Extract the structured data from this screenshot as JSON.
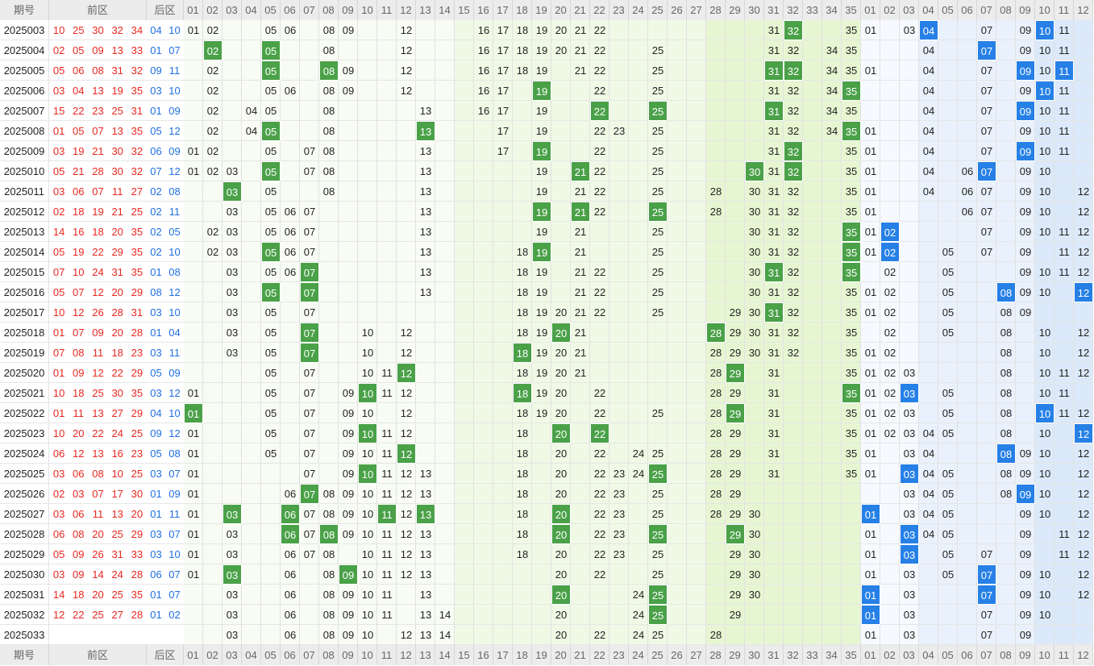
{
  "header": {
    "period_label": "期号",
    "front_label": "前区",
    "back_label": "后区",
    "front_numbers": [
      "01",
      "02",
      "03",
      "04",
      "05",
      "06",
      "07",
      "08",
      "09",
      "10",
      "11",
      "12",
      "13",
      "14",
      "15",
      "16",
      "17",
      "18",
      "19",
      "20",
      "21",
      "22",
      "23",
      "24",
      "25",
      "26",
      "27",
      "28",
      "29",
      "30",
      "31",
      "32",
      "33",
      "34",
      "35"
    ],
    "back_numbers": [
      "01",
      "02",
      "03",
      "04",
      "05",
      "06",
      "07",
      "08",
      "09",
      "10",
      "11",
      "12"
    ]
  },
  "colors": {
    "front_ball_text": "#e8271f",
    "back_ball_text": "#1f6fe0",
    "front_hit_bg": "#4aa148",
    "back_hit_bg": "#2680e6",
    "header_bg": "#ececec",
    "front_zone_tint": [
      "#f8fcf4",
      "#f0f9e5",
      "#e6f6d2"
    ],
    "back_zone_tint": [
      "#f6f9fe",
      "#e9f1fc",
      "#dbe9fa"
    ]
  },
  "rows": [
    {
      "period": "2025003",
      "front": [
        "10",
        "25",
        "30",
        "32",
        "34"
      ],
      "back": [
        "04",
        "10"
      ],
      "front_trend": [
        "01",
        "02",
        "05",
        "06",
        "08",
        "09",
        "12",
        "16",
        "17",
        "18",
        "19",
        "20",
        "21",
        "22",
        "31",
        "32",
        "35"
      ],
      "back_trend": [
        "01",
        "03",
        "04",
        "07",
        "09",
        "10",
        "11"
      ]
    },
    {
      "period": "2025004",
      "front": [
        "02",
        "05",
        "09",
        "13",
        "33"
      ],
      "back": [
        "01",
        "07"
      ],
      "front_trend": [
        "02",
        "05",
        "08",
        "12",
        "16",
        "17",
        "18",
        "19",
        "20",
        "21",
        "22",
        "25",
        "31",
        "32",
        "34",
        "35"
      ],
      "back_trend": [
        "04",
        "07",
        "09",
        "10",
        "11"
      ]
    },
    {
      "period": "2025005",
      "front": [
        "05",
        "06",
        "08",
        "31",
        "32"
      ],
      "back": [
        "09",
        "11"
      ],
      "front_trend": [
        "02",
        "05",
        "08",
        "09",
        "12",
        "16",
        "17",
        "18",
        "19",
        "21",
        "22",
        "25",
        "31",
        "32",
        "34",
        "35"
      ],
      "back_trend": [
        "01",
        "04",
        "07",
        "09",
        "10",
        "11"
      ]
    },
    {
      "period": "2025006",
      "front": [
        "03",
        "04",
        "13",
        "19",
        "35"
      ],
      "back": [
        "03",
        "10"
      ],
      "front_trend": [
        "02",
        "05",
        "06",
        "08",
        "09",
        "12",
        "16",
        "17",
        "19",
        "22",
        "25",
        "31",
        "32",
        "34",
        "35"
      ],
      "back_trend": [
        "04",
        "07",
        "09",
        "10",
        "11"
      ]
    },
    {
      "period": "2025007",
      "front": [
        "15",
        "22",
        "23",
        "25",
        "31"
      ],
      "back": [
        "01",
        "09"
      ],
      "front_trend": [
        "02",
        "04",
        "05",
        "08",
        "13",
        "16",
        "17",
        "19",
        "22",
        "25",
        "31",
        "32",
        "34",
        "35"
      ],
      "back_trend": [
        "04",
        "07",
        "09",
        "10",
        "11"
      ]
    },
    {
      "period": "2025008",
      "front": [
        "01",
        "05",
        "07",
        "13",
        "35"
      ],
      "back": [
        "05",
        "12"
      ],
      "front_trend": [
        "02",
        "04",
        "05",
        "08",
        "13",
        "17",
        "19",
        "22",
        "23",
        "25",
        "31",
        "32",
        "34",
        "35"
      ],
      "back_trend": [
        "01",
        "04",
        "07",
        "09",
        "10",
        "11"
      ]
    },
    {
      "period": "2025009",
      "front": [
        "03",
        "19",
        "21",
        "30",
        "32"
      ],
      "back": [
        "06",
        "09"
      ],
      "front_trend": [
        "01",
        "02",
        "05",
        "07",
        "08",
        "13",
        "17",
        "19",
        "22",
        "25",
        "31",
        "32",
        "35"
      ],
      "back_trend": [
        "01",
        "04",
        "07",
        "09",
        "10",
        "11"
      ]
    },
    {
      "period": "2025010",
      "front": [
        "05",
        "21",
        "28",
        "30",
        "32"
      ],
      "back": [
        "07",
        "12"
      ],
      "front_trend": [
        "01",
        "02",
        "03",
        "05",
        "07",
        "08",
        "13",
        "19",
        "21",
        "22",
        "25",
        "30",
        "31",
        "32",
        "35"
      ],
      "back_trend": [
        "01",
        "04",
        "06",
        "07",
        "09",
        "10"
      ]
    },
    {
      "period": "2025011",
      "front": [
        "03",
        "06",
        "07",
        "11",
        "27"
      ],
      "back": [
        "02",
        "08"
      ],
      "front_trend": [
        "03",
        "05",
        "08",
        "13",
        "19",
        "21",
        "22",
        "25",
        "28",
        "30",
        "31",
        "32",
        "35"
      ],
      "back_trend": [
        "01",
        "04",
        "06",
        "07",
        "09",
        "10",
        "12"
      ]
    },
    {
      "period": "2025012",
      "front": [
        "02",
        "18",
        "19",
        "21",
        "25"
      ],
      "back": [
        "02",
        "11"
      ],
      "front_trend": [
        "03",
        "05",
        "06",
        "07",
        "13",
        "19",
        "21",
        "22",
        "25",
        "28",
        "30",
        "31",
        "32",
        "35"
      ],
      "back_trend": [
        "01",
        "06",
        "07",
        "09",
        "10",
        "12"
      ]
    },
    {
      "period": "2025013",
      "front": [
        "14",
        "16",
        "18",
        "20",
        "35"
      ],
      "back": [
        "02",
        "05"
      ],
      "front_trend": [
        "02",
        "03",
        "05",
        "06",
        "07",
        "13",
        "19",
        "21",
        "25",
        "30",
        "31",
        "32",
        "35"
      ],
      "back_trend": [
        "01",
        "02",
        "07",
        "09",
        "10",
        "11",
        "12"
      ]
    },
    {
      "period": "2025014",
      "front": [
        "05",
        "19",
        "22",
        "29",
        "35"
      ],
      "back": [
        "02",
        "10"
      ],
      "front_trend": [
        "02",
        "03",
        "05",
        "06",
        "07",
        "13",
        "18",
        "19",
        "21",
        "25",
        "30",
        "31",
        "32",
        "35"
      ],
      "back_trend": [
        "01",
        "02",
        "05",
        "07",
        "09",
        "11",
        "12"
      ]
    },
    {
      "period": "2025015",
      "front": [
        "07",
        "10",
        "24",
        "31",
        "35"
      ],
      "back": [
        "01",
        "08"
      ],
      "front_trend": [
        "03",
        "05",
        "06",
        "07",
        "13",
        "18",
        "19",
        "21",
        "22",
        "25",
        "30",
        "31",
        "32",
        "35"
      ],
      "back_trend": [
        "02",
        "05",
        "09",
        "10",
        "11",
        "12"
      ]
    },
    {
      "period": "2025016",
      "front": [
        "05",
        "07",
        "12",
        "20",
        "29"
      ],
      "back": [
        "08",
        "12"
      ],
      "front_trend": [
        "03",
        "05",
        "07",
        "13",
        "18",
        "19",
        "21",
        "22",
        "25",
        "30",
        "31",
        "32",
        "35"
      ],
      "back_trend": [
        "01",
        "02",
        "05",
        "08",
        "09",
        "10",
        "12"
      ]
    },
    {
      "period": "2025017",
      "front": [
        "10",
        "12",
        "26",
        "28",
        "31"
      ],
      "back": [
        "03",
        "10"
      ],
      "front_trend": [
        "03",
        "05",
        "07",
        "18",
        "19",
        "20",
        "21",
        "22",
        "25",
        "29",
        "30",
        "31",
        "32",
        "35"
      ],
      "back_trend": [
        "01",
        "02",
        "05",
        "08",
        "09"
      ]
    },
    {
      "period": "2025018",
      "front": [
        "01",
        "07",
        "09",
        "20",
        "28"
      ],
      "back": [
        "01",
        "04"
      ],
      "front_trend": [
        "03",
        "05",
        "07",
        "10",
        "12",
        "18",
        "19",
        "20",
        "21",
        "28",
        "29",
        "30",
        "31",
        "32",
        "35"
      ],
      "back_trend": [
        "02",
        "05",
        "08",
        "10",
        "12"
      ]
    },
    {
      "period": "2025019",
      "front": [
        "07",
        "08",
        "11",
        "18",
        "23"
      ],
      "back": [
        "03",
        "11"
      ],
      "front_trend": [
        "03",
        "05",
        "07",
        "10",
        "12",
        "18",
        "19",
        "20",
        "21",
        "28",
        "29",
        "30",
        "31",
        "32",
        "35"
      ],
      "back_trend": [
        "01",
        "02",
        "08",
        "10",
        "12"
      ]
    },
    {
      "period": "2025020",
      "front": [
        "01",
        "09",
        "12",
        "22",
        "29"
      ],
      "back": [
        "05",
        "09"
      ],
      "front_trend": [
        "05",
        "07",
        "10",
        "11",
        "12",
        "18",
        "19",
        "20",
        "21",
        "28",
        "29",
        "31",
        "35"
      ],
      "back_trend": [
        "01",
        "02",
        "03",
        "08",
        "10",
        "11",
        "12"
      ]
    },
    {
      "period": "2025021",
      "front": [
        "10",
        "18",
        "25",
        "30",
        "35"
      ],
      "back": [
        "03",
        "12"
      ],
      "front_trend": [
        "01",
        "05",
        "07",
        "09",
        "10",
        "11",
        "12",
        "18",
        "19",
        "20",
        "22",
        "28",
        "29",
        "31",
        "35"
      ],
      "back_trend": [
        "01",
        "02",
        "03",
        "05",
        "08",
        "10",
        "11"
      ]
    },
    {
      "period": "2025022",
      "front": [
        "01",
        "11",
        "13",
        "27",
        "29"
      ],
      "back": [
        "04",
        "10"
      ],
      "front_trend": [
        "01",
        "05",
        "07",
        "09",
        "10",
        "12",
        "18",
        "19",
        "20",
        "22",
        "25",
        "28",
        "29",
        "31",
        "35"
      ],
      "back_trend": [
        "01",
        "02",
        "03",
        "05",
        "08",
        "10",
        "11",
        "12"
      ]
    },
    {
      "period": "2025023",
      "front": [
        "10",
        "20",
        "22",
        "24",
        "25"
      ],
      "back": [
        "09",
        "12"
      ],
      "front_trend": [
        "01",
        "05",
        "07",
        "09",
        "10",
        "11",
        "12",
        "18",
        "20",
        "22",
        "28",
        "29",
        "31",
        "35"
      ],
      "back_trend": [
        "01",
        "02",
        "03",
        "04",
        "05",
        "08",
        "10",
        "12"
      ]
    },
    {
      "period": "2025024",
      "front": [
        "06",
        "12",
        "13",
        "16",
        "23"
      ],
      "back": [
        "05",
        "08"
      ],
      "front_trend": [
        "01",
        "05",
        "07",
        "09",
        "10",
        "11",
        "12",
        "18",
        "20",
        "22",
        "24",
        "25",
        "28",
        "29",
        "31",
        "35"
      ],
      "back_trend": [
        "01",
        "03",
        "04",
        "08",
        "09",
        "10",
        "12"
      ]
    },
    {
      "period": "2025025",
      "front": [
        "03",
        "06",
        "08",
        "10",
        "25"
      ],
      "back": [
        "03",
        "07"
      ],
      "front_trend": [
        "01",
        "07",
        "09",
        "10",
        "11",
        "12",
        "13",
        "18",
        "20",
        "22",
        "23",
        "24",
        "25",
        "28",
        "29",
        "31",
        "35"
      ],
      "back_trend": [
        "01",
        "03",
        "04",
        "05",
        "08",
        "09",
        "10",
        "12"
      ]
    },
    {
      "period": "2025026",
      "front": [
        "02",
        "03",
        "07",
        "17",
        "30"
      ],
      "back": [
        "01",
        "09"
      ],
      "front_trend": [
        "01",
        "06",
        "07",
        "08",
        "09",
        "10",
        "11",
        "12",
        "13",
        "18",
        "20",
        "22",
        "23",
        "25",
        "28",
        "29"
      ],
      "back_trend": [
        "03",
        "04",
        "05",
        "08",
        "09",
        "10",
        "12"
      ]
    },
    {
      "period": "2025027",
      "front": [
        "03",
        "06",
        "11",
        "13",
        "20"
      ],
      "back": [
        "01",
        "11"
      ],
      "front_trend": [
        "01",
        "03",
        "06",
        "07",
        "08",
        "09",
        "10",
        "11",
        "12",
        "13",
        "18",
        "20",
        "22",
        "23",
        "25",
        "28",
        "29",
        "30"
      ],
      "back_trend": [
        "01",
        "03",
        "04",
        "05",
        "09",
        "10",
        "12"
      ]
    },
    {
      "period": "2025028",
      "front": [
        "06",
        "08",
        "20",
        "25",
        "29"
      ],
      "back": [
        "03",
        "07"
      ],
      "front_trend": [
        "01",
        "03",
        "06",
        "07",
        "08",
        "09",
        "10",
        "11",
        "12",
        "13",
        "18",
        "20",
        "22",
        "23",
        "25",
        "29",
        "30"
      ],
      "back_trend": [
        "01",
        "03",
        "04",
        "05",
        "09",
        "11",
        "12"
      ]
    },
    {
      "period": "2025029",
      "front": [
        "05",
        "09",
        "26",
        "31",
        "33"
      ],
      "back": [
        "03",
        "10"
      ],
      "front_trend": [
        "01",
        "03",
        "06",
        "07",
        "08",
        "10",
        "11",
        "12",
        "13",
        "18",
        "20",
        "22",
        "23",
        "25",
        "29",
        "30"
      ],
      "back_trend": [
        "01",
        "03",
        "05",
        "07",
        "09",
        "11",
        "12"
      ]
    },
    {
      "period": "2025030",
      "front": [
        "03",
        "09",
        "14",
        "24",
        "28"
      ],
      "back": [
        "06",
        "07"
      ],
      "front_trend": [
        "01",
        "03",
        "06",
        "08",
        "09",
        "10",
        "11",
        "12",
        "13",
        "20",
        "22",
        "25",
        "29",
        "30"
      ],
      "back_trend": [
        "01",
        "03",
        "05",
        "07",
        "09",
        "10",
        "12"
      ]
    },
    {
      "period": "2025031",
      "front": [
        "14",
        "18",
        "20",
        "25",
        "35"
      ],
      "back": [
        "01",
        "07"
      ],
      "front_trend": [
        "03",
        "06",
        "08",
        "09",
        "10",
        "11",
        "13",
        "20",
        "24",
        "25",
        "29",
        "30"
      ],
      "back_trend": [
        "01",
        "03",
        "07",
        "09",
        "10",
        "12"
      ]
    },
    {
      "period": "2025032",
      "front": [
        "12",
        "22",
        "25",
        "27",
        "28"
      ],
      "back": [
        "01",
        "02"
      ],
      "front_trend": [
        "03",
        "06",
        "08",
        "09",
        "10",
        "11",
        "13",
        "14",
        "20",
        "24",
        "25",
        "29"
      ],
      "back_trend": [
        "01",
        "03",
        "07",
        "09",
        "10"
      ]
    },
    {
      "period": "2025033",
      "front": [
        "",
        "",
        "",
        "",
        ""
      ],
      "back": [
        "",
        ""
      ],
      "front_trend": [
        "03",
        "06",
        "08",
        "09",
        "10",
        "12",
        "13",
        "14",
        "20",
        "22",
        "24",
        "25",
        "28"
      ],
      "back_trend": [
        "01",
        "03",
        "07",
        "09"
      ]
    }
  ],
  "front_hits": [
    [
      "32"
    ],
    [
      "02",
      "05"
    ],
    [
      "05",
      "08",
      "31",
      "32"
    ],
    [
      "19",
      "35"
    ],
    [
      "22",
      "25",
      "31"
    ],
    [
      "05",
      "13",
      "35"
    ],
    [
      "19",
      "32"
    ],
    [
      "05",
      "21",
      "30",
      "32"
    ],
    [
      "03"
    ],
    [
      "19",
      "21",
      "25"
    ],
    [
      "35"
    ],
    [
      "05",
      "19",
      "35"
    ],
    [
      "07",
      "31",
      "35"
    ],
    [
      "05",
      "07"
    ],
    [
      "31"
    ],
    [
      "07",
      "20",
      "28"
    ],
    [
      "07",
      "18"
    ],
    [
      "12",
      "29"
    ],
    [
      "10",
      "18",
      "35"
    ],
    [
      "01",
      "29"
    ],
    [
      "10",
      "20",
      "22"
    ],
    [
      "12"
    ],
    [
      "10",
      "25"
    ],
    [
      "07"
    ],
    [
      "03",
      "06",
      "11",
      "13",
      "20"
    ],
    [
      "06",
      "08",
      "20",
      "25",
      "29"
    ],
    [],
    [
      "03",
      "09"
    ],
    [
      "20",
      "25"
    ],
    [
      "25"
    ],
    []
  ],
  "back_hits": [
    [
      "04",
      "10"
    ],
    [
      "07"
    ],
    [
      "09",
      "11"
    ],
    [
      "10"
    ],
    [
      "09"
    ],
    [],
    [
      "09"
    ],
    [
      "07"
    ],
    [],
    [],
    [
      "02"
    ],
    [
      "02"
    ],
    [],
    [
      "08",
      "12"
    ],
    [],
    [],
    [],
    [],
    [
      "03"
    ],
    [
      "10"
    ],
    [
      "12"
    ],
    [
      "08"
    ],
    [
      "03"
    ],
    [
      "09"
    ],
    [
      "01"
    ],
    [
      "03"
    ],
    [
      "03"
    ],
    [
      "07"
    ],
    [
      "01",
      "07"
    ],
    [
      "01"
    ],
    []
  ]
}
